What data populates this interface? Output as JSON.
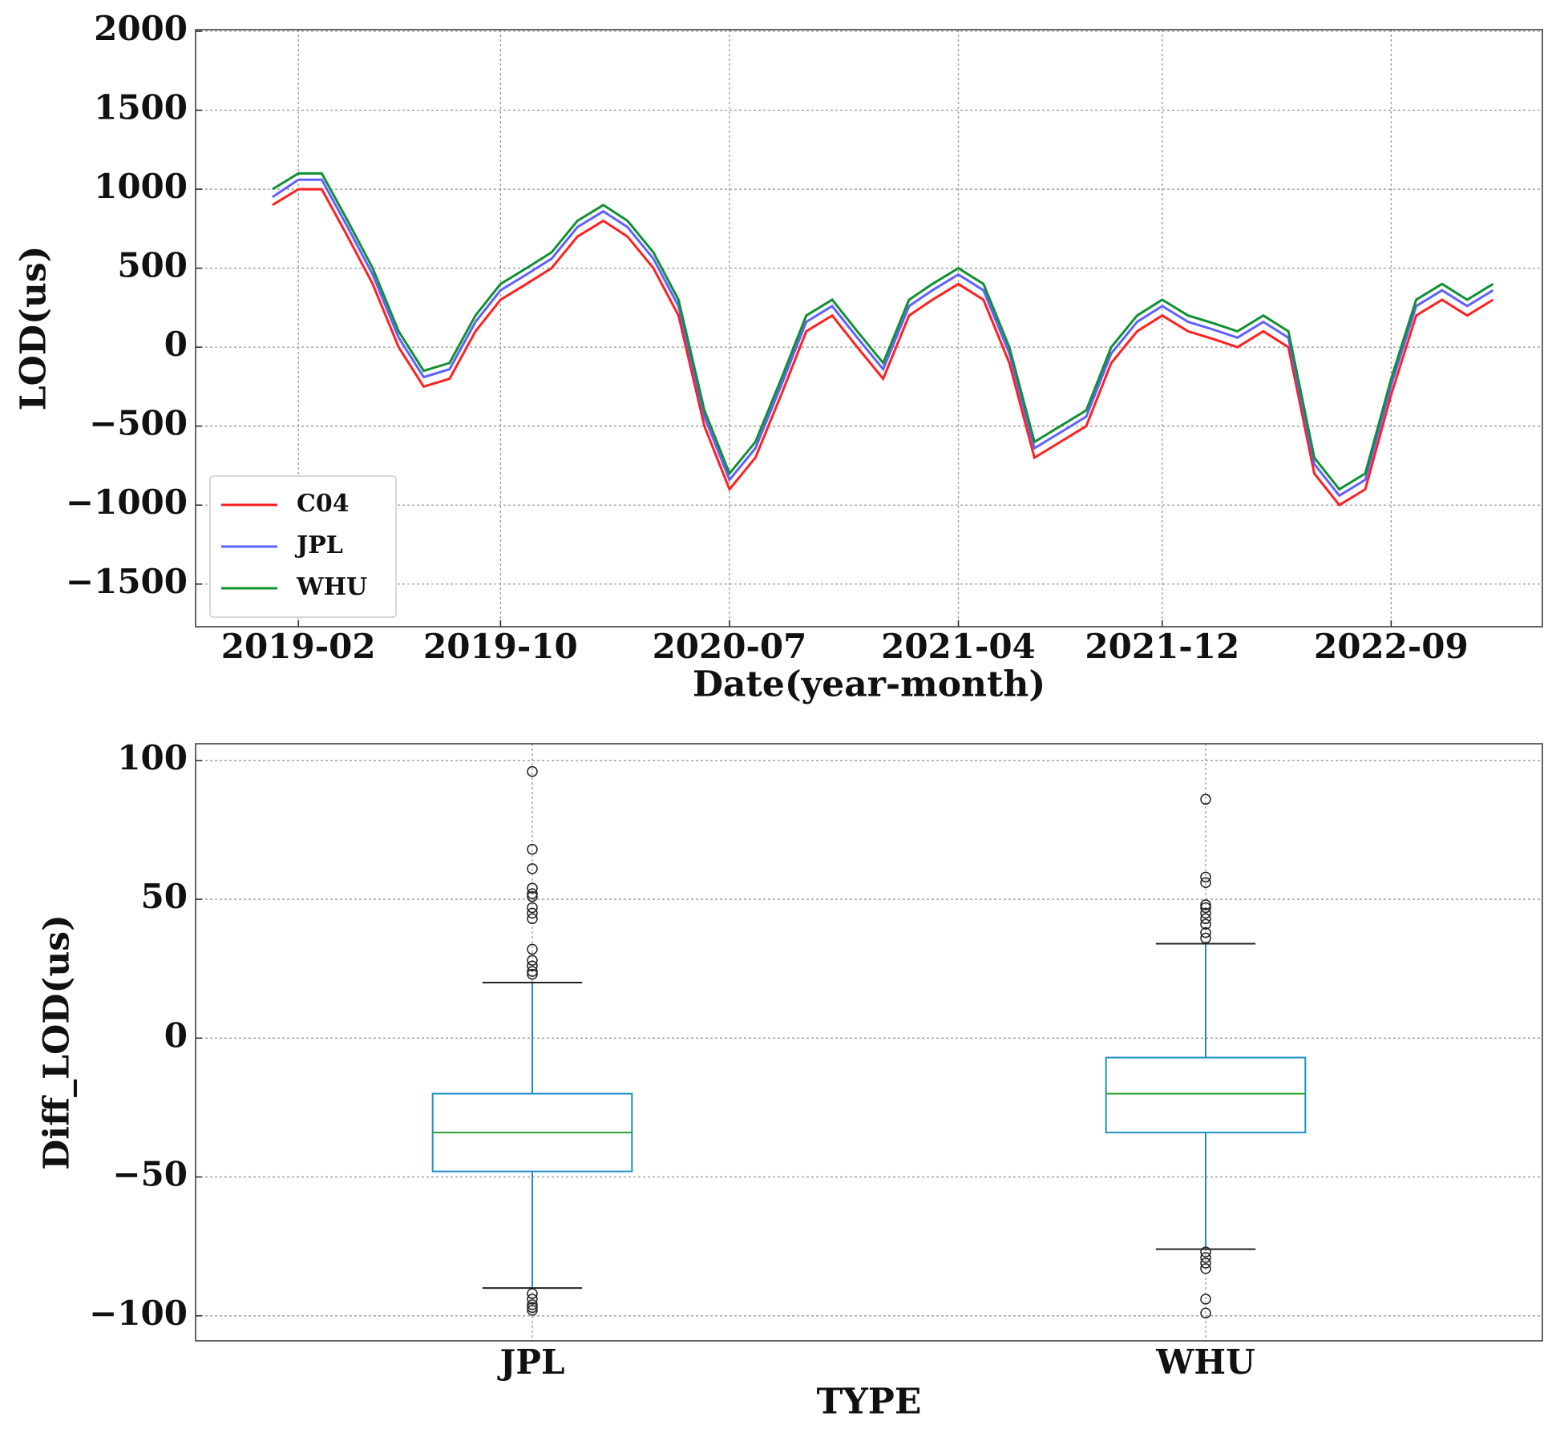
{
  "chart_data": [
    {
      "type": "line",
      "x_label": "Date(year-month)",
      "y_label": "LOD(us)",
      "x": [
        "2019-01",
        "2019-02",
        "2019-03",
        "2019-04",
        "2019-05",
        "2019-06",
        "2019-07",
        "2019-08",
        "2019-09",
        "2019-10",
        "2019-11",
        "2019-12",
        "2020-01",
        "2020-02",
        "2020-03",
        "2020-04",
        "2020-05",
        "2020-06",
        "2020-07",
        "2020-08",
        "2020-09",
        "2020-10",
        "2020-11",
        "2020-12",
        "2021-01",
        "2021-02",
        "2021-03",
        "2021-04",
        "2021-05",
        "2021-06",
        "2021-07",
        "2021-08",
        "2021-09",
        "2021-10",
        "2021-11",
        "2021-12",
        "2022-01",
        "2022-02",
        "2022-03",
        "2022-04",
        "2022-05",
        "2022-06",
        "2022-07",
        "2022-08",
        "2022-09",
        "2022-10",
        "2022-11",
        "2022-12",
        "2023-01"
      ],
      "series": [
        {
          "name": "C04",
          "color": "#ff2020",
          "values": [
            900,
            1000,
            1000,
            700,
            400,
            0,
            -250,
            -200,
            100,
            300,
            400,
            500,
            700,
            800,
            700,
            500,
            200,
            -500,
            -900,
            -700,
            -300,
            100,
            200,
            0,
            -200,
            200,
            300,
            400,
            300,
            -100,
            -700,
            -600,
            -500,
            -100,
            100,
            200,
            100,
            50,
            0,
            100,
            0,
            -800,
            -1000,
            -900,
            -300,
            200,
            300,
            200,
            300
          ]
        },
        {
          "name": "JPL",
          "color": "#6060ff",
          "values": [
            950,
            1060,
            1060,
            760,
            460,
            60,
            -190,
            -140,
            160,
            360,
            460,
            560,
            760,
            860,
            760,
            560,
            260,
            -440,
            -840,
            -640,
            -240,
            160,
            260,
            60,
            -140,
            260,
            360,
            460,
            360,
            -40,
            -640,
            -540,
            -440,
            -40,
            160,
            260,
            160,
            110,
            60,
            160,
            60,
            -740,
            -940,
            -840,
            -240,
            260,
            360,
            260,
            360
          ]
        },
        {
          "name": "WHU",
          "color": "#109030",
          "values": [
            1000,
            1100,
            1100,
            800,
            500,
            100,
            -150,
            -100,
            200,
            400,
            500,
            600,
            800,
            900,
            800,
            600,
            300,
            -400,
            -800,
            -600,
            -200,
            200,
            300,
            100,
            -100,
            300,
            400,
            500,
            400,
            0,
            -600,
            -500,
            -400,
            0,
            200,
            300,
            200,
            150,
            100,
            200,
            100,
            -700,
            -900,
            -800,
            -200,
            300,
            400,
            300,
            400
          ]
        }
      ],
      "xlim": [
        "2018-10",
        "2023-03"
      ],
      "xticks": [
        "2019-02",
        "2019-10",
        "2020-07",
        "2021-04",
        "2021-12",
        "2022-09"
      ],
      "ylim": [
        -1770,
        2010
      ],
      "yticks": [
        {
          "value": -1500,
          "label": "−1500"
        },
        {
          "value": -1000,
          "label": "−1000"
        },
        {
          "value": -500,
          "label": "−500"
        },
        0,
        500,
        1000,
        1500,
        2000
      ],
      "grid": true,
      "legend": "lower left"
    },
    {
      "type": "box",
      "x_label": "TYPE",
      "y_label": "Diff_LOD(us)",
      "categories": [
        "JPL",
        "WHU"
      ],
      "boxes": [
        {
          "whislo": -90,
          "q1": -48,
          "med": -34,
          "q3": -20,
          "whishi": 20,
          "fliers": [
            96,
            68,
            61,
            54,
            52,
            51,
            47,
            45,
            43,
            32,
            28,
            26,
            24,
            23,
            -92,
            -94,
            -96,
            -97,
            -98
          ]
        },
        {
          "whislo": -76,
          "q1": -34,
          "med": -20,
          "q3": -7,
          "whishi": 34,
          "fliers": [
            86,
            58,
            56,
            48,
            47,
            45,
            43,
            41,
            38,
            36,
            -77,
            -79,
            -81,
            -83,
            -94,
            -99
          ]
        }
      ],
      "box_color": "#1f8fc8",
      "median_color": "#2ca02c",
      "ylim": [
        -109,
        106
      ],
      "yticks": [
        {
          "value": -100,
          "label": "−100"
        },
        {
          "value": -50,
          "label": "−50"
        },
        0,
        50,
        100
      ],
      "grid": true
    }
  ]
}
